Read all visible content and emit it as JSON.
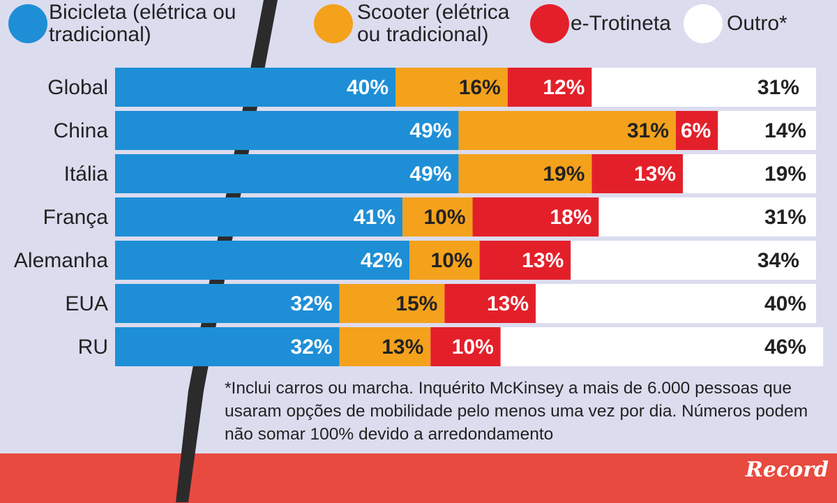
{
  "chart_data": {
    "type": "stacked-bar-horizontal",
    "categories": [
      "Global",
      "China",
      "Itália",
      "França",
      "Alemanha",
      "EUA",
      "RU"
    ],
    "xlim": [
      0,
      100
    ],
    "series": [
      {
        "name": "Bicicleta (elétrica ou tradicional)",
        "color": "#1e8fd6",
        "values": [
          40,
          49,
          49,
          41,
          42,
          32,
          32
        ],
        "value_labels": [
          "40%",
          "49%",
          "49%",
          "41%",
          "42%",
          "32%",
          "32%"
        ]
      },
      {
        "name": "Scooter (elétrica ou tradicional)",
        "color": "#f4a11c",
        "values": [
          16,
          31,
          19,
          10,
          10,
          15,
          13
        ],
        "value_labels": [
          "16%",
          "31%",
          "19%",
          "10%",
          "10%",
          "15%",
          "13%"
        ]
      },
      {
        "name": "e-Trotineta",
        "color": "#e3202a",
        "values": [
          12,
          6,
          13,
          18,
          13,
          13,
          10
        ],
        "value_labels": [
          "12%",
          "6%",
          "13%",
          "18%",
          "13%",
          "13%",
          "10%"
        ]
      },
      {
        "name": "Outro*",
        "color": "#ffffff",
        "values": [
          31,
          14,
          19,
          31,
          34,
          40,
          46
        ],
        "value_labels": [
          "31%",
          "14%",
          "19%",
          "31%",
          "34%",
          "40%",
          "46%"
        ]
      }
    ],
    "footnote": "*Inclui carros ou marcha. Inquérito McKinsey a mais de 6.000 pessoas que usaram opções de mobilidade pelo menos uma vez por dia. Números podem não somar 100% devido a arredondamento",
    "logo": "Record"
  }
}
